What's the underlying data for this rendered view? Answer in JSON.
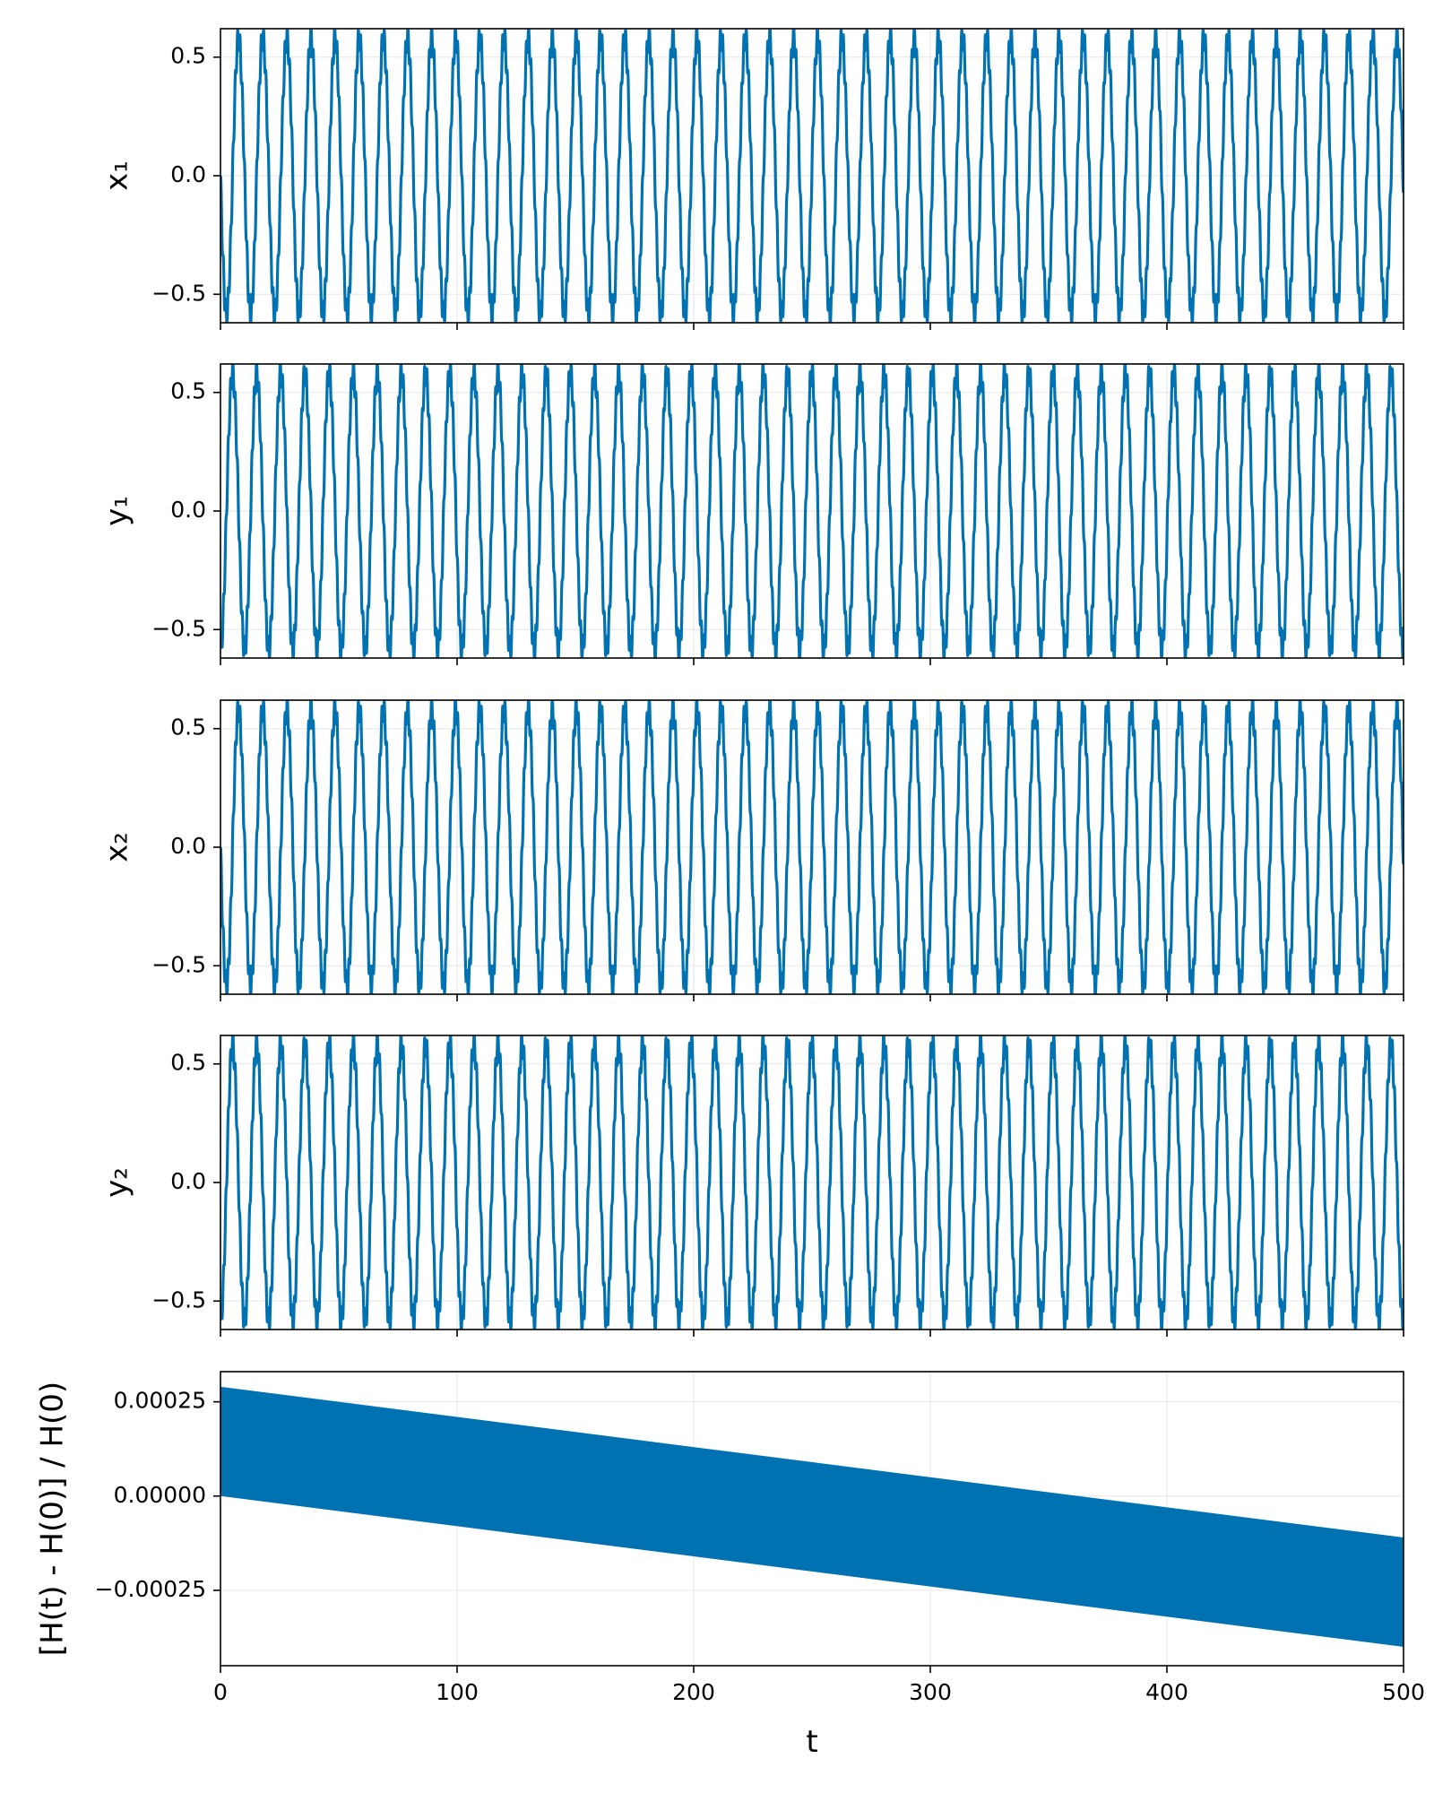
{
  "figure": {
    "background": "#ffffff",
    "line_color": "#0072b2",
    "grid_color": "#e6e6e6"
  },
  "chart_data": [
    {
      "type": "line",
      "ylabel": "x₁",
      "xlabel": "",
      "xlim": [
        0,
        500
      ],
      "ylim": [
        -0.62,
        0.62
      ],
      "yticks": [
        -0.5,
        0.0,
        0.5
      ],
      "ytick_labels": [
        "−0.5",
        "0.0",
        "0.5"
      ],
      "xticks": [
        0,
        100,
        200,
        300,
        400,
        500
      ],
      "xtick_labels_visible": false,
      "grid": true,
      "series": [
        {
          "amplitude": 0.58,
          "period": 10.2,
          "phase_cycles": 0.25,
          "ripple_amplitude": 0.05,
          "ripple_period": 1.0,
          "x_range": [
            0,
            500
          ]
        }
      ]
    },
    {
      "type": "line",
      "ylabel": "y₁",
      "xlabel": "",
      "xlim": [
        0,
        500
      ],
      "ylim": [
        -0.62,
        0.62
      ],
      "yticks": [
        -0.5,
        0.0,
        0.5
      ],
      "ytick_labels": [
        "−0.5",
        "0.0",
        "0.5"
      ],
      "xticks": [
        0,
        100,
        200,
        300,
        400,
        500
      ],
      "xtick_labels_visible": false,
      "grid": true,
      "series": [
        {
          "amplitude": 0.58,
          "period": 10.2,
          "phase_cycles": 0.5,
          "ripple_amplitude": 0.05,
          "ripple_period": 1.0,
          "x_range": [
            0,
            500
          ]
        }
      ]
    },
    {
      "type": "line",
      "ylabel": "x₂",
      "xlabel": "",
      "xlim": [
        0,
        500
      ],
      "ylim": [
        -0.62,
        0.62
      ],
      "yticks": [
        -0.5,
        0.0,
        0.5
      ],
      "ytick_labels": [
        "−0.5",
        "0.0",
        "0.5"
      ],
      "xticks": [
        0,
        100,
        200,
        300,
        400,
        500
      ],
      "xtick_labels_visible": false,
      "grid": true,
      "series": [
        {
          "amplitude": 0.58,
          "period": 10.2,
          "phase_cycles": 0.25,
          "ripple_amplitude": 0.05,
          "ripple_period": 1.0,
          "x_range": [
            0,
            500
          ]
        }
      ]
    },
    {
      "type": "line",
      "ylabel": "y₂",
      "xlabel": "",
      "xlim": [
        0,
        500
      ],
      "ylim": [
        -0.62,
        0.62
      ],
      "yticks": [
        -0.5,
        0.0,
        0.5
      ],
      "ytick_labels": [
        "−0.5",
        "0.0",
        "0.5"
      ],
      "xticks": [
        0,
        100,
        200,
        300,
        400,
        500
      ],
      "xtick_labels_visible": false,
      "grid": true,
      "series": [
        {
          "amplitude": 0.58,
          "period": 10.2,
          "phase_cycles": 0.5,
          "ripple_amplitude": 0.05,
          "ripple_period": 1.0,
          "x_range": [
            0,
            500
          ]
        }
      ]
    },
    {
      "type": "area",
      "ylabel": "[H(t) - H(0)] / H(0)",
      "xlabel": "t",
      "xlim": [
        0,
        500
      ],
      "ylim": [
        -0.00045,
        0.00033
      ],
      "yticks": [
        -0.00025,
        0.0,
        0.00025
      ],
      "ytick_labels": [
        "−0.00025",
        "0.00000",
        "0.00025"
      ],
      "xticks": [
        0,
        100,
        200,
        300,
        400,
        500
      ],
      "xtick_labels": [
        "0",
        "100",
        "200",
        "300",
        "400",
        "500"
      ],
      "xtick_labels_visible": true,
      "grid": true,
      "band": {
        "x": [
          0,
          500
        ],
        "upper": [
          0.00029,
          -0.00011
        ],
        "lower": [
          0.0,
          -0.0004
        ]
      }
    }
  ]
}
